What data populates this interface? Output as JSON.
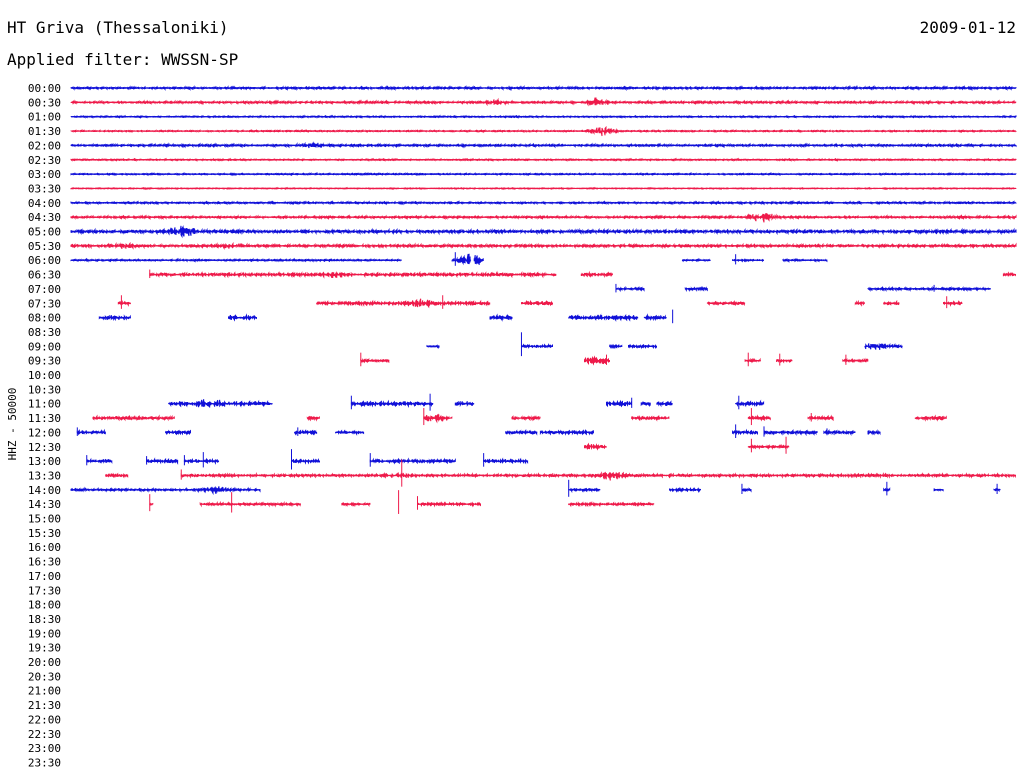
{
  "header": {
    "station": "HT Griva (Thessaloniki)",
    "date": "2009-01-12",
    "filter_prefix": "Applied filter:",
    "filter_name": "WWSSN-SP",
    "channel_label": "HHZ - 50000"
  },
  "colors": {
    "even_row": "#1010d8",
    "odd_row": "#ee1a4a",
    "text": "#000000"
  },
  "chart_data": {
    "type": "line",
    "x_unit": "minutes within 30-minute row",
    "x_range": [
      0,
      30
    ],
    "row_labels": [
      "00:00",
      "00:30",
      "01:00",
      "01:30",
      "02:00",
      "02:30",
      "03:00",
      "03:30",
      "04:00",
      "04:30",
      "05:00",
      "05:30",
      "06:00",
      "06:30",
      "07:00",
      "07:30",
      "08:00",
      "08:30",
      "09:00",
      "09:30",
      "10:00",
      "10:30",
      "11:00",
      "11:30",
      "12:00",
      "12:30",
      "13:00",
      "13:30",
      "14:00",
      "14:30",
      "15:00",
      "15:30",
      "16:00",
      "16:30",
      "17:00",
      "17:30",
      "18:00",
      "18:30",
      "19:00",
      "19:30",
      "20:00",
      "20:30",
      "21:00",
      "21:30",
      "22:00",
      "22:30",
      "23:00",
      "23:30"
    ],
    "rows": [
      {
        "segments": [
          [
            0,
            30
          ]
        ],
        "amp": 1.2,
        "events": []
      },
      {
        "segments": [
          [
            0,
            30
          ]
        ],
        "amp": 1.2,
        "events": [
          [
            16.7,
            4
          ],
          [
            13.5,
            2
          ]
        ]
      },
      {
        "segments": [
          [
            0,
            30
          ]
        ],
        "amp": 0.8,
        "events": []
      },
      {
        "segments": [
          [
            0,
            30
          ]
        ],
        "amp": 0.8,
        "events": [
          [
            16.9,
            5
          ]
        ]
      },
      {
        "segments": [
          [
            0,
            30
          ]
        ],
        "amp": 1.2,
        "events": [
          [
            7.7,
            2
          ]
        ]
      },
      {
        "segments": [
          [
            0,
            30
          ]
        ],
        "amp": 0.8,
        "events": []
      },
      {
        "segments": [
          [
            0,
            30
          ]
        ],
        "amp": 0.8,
        "events": []
      },
      {
        "segments": [
          [
            0,
            30
          ]
        ],
        "amp": 0.6,
        "events": []
      },
      {
        "segments": [
          [
            0,
            30
          ]
        ],
        "amp": 1.0,
        "events": []
      },
      {
        "segments": [
          [
            0,
            30
          ]
        ],
        "amp": 1.2,
        "events": [
          [
            21.9,
            5
          ]
        ]
      },
      {
        "segments": [
          [
            0,
            30
          ]
        ],
        "amp": 2.0,
        "events": [
          [
            3.5,
            5
          ]
        ]
      },
      {
        "segments": [
          [
            0,
            30
          ]
        ],
        "amp": 1.6,
        "events": [
          [
            5.1,
            2
          ],
          [
            1.6,
            2
          ]
        ]
      },
      {
        "segments": [
          [
            0,
            10.5
          ],
          [
            12.1,
            12.7
          ],
          [
            12.8,
            13.1
          ],
          [
            19.4,
            20.3
          ],
          [
            21.0,
            22.0
          ],
          [
            22.6,
            24.0
          ]
        ],
        "amp": 1.0,
        "events": [
          [
            12.8,
            8
          ]
        ],
        "ticks": [
          [
            12.2,
            8
          ],
          [
            21.1,
            6
          ]
        ]
      },
      {
        "segments": [
          [
            2.5,
            15.4
          ],
          [
            16.2,
            17.2
          ],
          [
            29.6,
            30
          ]
        ],
        "amp": 2.0,
        "events": [
          [
            8.4,
            2
          ]
        ],
        "ticks": [
          [
            2.5,
            5
          ]
        ]
      },
      {
        "segments": [
          [
            17.3,
            18.2
          ],
          [
            19.5,
            20.2
          ],
          [
            25.3,
            29.2
          ]
        ],
        "amp": 1.5,
        "events": [],
        "ticks": [
          [
            17.3,
            5
          ],
          [
            27.4,
            4
          ]
        ]
      },
      {
        "segments": [
          [
            1.5,
            1.9
          ],
          [
            7.8,
            13.3
          ],
          [
            14.3,
            15.3
          ],
          [
            20.2,
            21.4
          ],
          [
            24.9,
            25.2
          ],
          [
            25.8,
            26.3
          ],
          [
            27.7,
            28.3
          ]
        ],
        "amp": 2.0,
        "events": [
          [
            11.1,
            3
          ]
        ],
        "ticks": [
          [
            1.6,
            8
          ],
          [
            11.8,
            8
          ],
          [
            27.8,
            7
          ]
        ]
      },
      {
        "segments": [
          [
            0.9,
            1.9
          ],
          [
            5.0,
            5.9
          ],
          [
            13.3,
            14.0
          ],
          [
            15.8,
            18.0
          ],
          [
            18.2,
            18.9
          ]
        ],
        "amp": 2.5,
        "events": [],
        "ticks": [
          [
            19.1,
            8
          ]
        ]
      },
      {
        "segments": [],
        "amp": 1.0,
        "events": []
      },
      {
        "segments": [
          [
            11.3,
            11.7
          ],
          [
            14.3,
            15.3
          ],
          [
            17.1,
            17.5
          ],
          [
            17.7,
            18.6
          ],
          [
            25.2,
            26.4
          ]
        ],
        "amp": 1.5,
        "events": [
          [
            25.6,
            3
          ]
        ],
        "ticks": [
          [
            14.3,
            14
          ]
        ]
      },
      {
        "segments": [
          [
            9.2,
            10.1
          ],
          [
            16.3,
            17.1
          ],
          [
            21.4,
            21.9
          ],
          [
            22.4,
            22.9
          ],
          [
            24.5,
            25.3
          ]
        ],
        "amp": 1.5,
        "events": [
          [
            16.7,
            3
          ]
        ],
        "ticks": [
          [
            9.2,
            8
          ],
          [
            17.0,
            6
          ],
          [
            21.5,
            8
          ],
          [
            22.5,
            7
          ],
          [
            24.6,
            6
          ]
        ]
      },
      {
        "segments": [],
        "amp": 1.0,
        "events": []
      },
      {
        "segments": [],
        "amp": 1.0,
        "events": []
      },
      {
        "segments": [
          [
            3.1,
            6.4
          ],
          [
            8.9,
            11.5
          ],
          [
            12.2,
            12.8
          ],
          [
            17.0,
            17.8
          ],
          [
            18.1,
            18.4
          ],
          [
            18.6,
            19.1
          ],
          [
            21.1,
            22.0
          ]
        ],
        "amp": 2.5,
        "events": [
          [
            4.4,
            3
          ]
        ],
        "ticks": [
          [
            8.9,
            8
          ],
          [
            11.4,
            10
          ],
          [
            17.8,
            6
          ],
          [
            21.2,
            8
          ]
        ]
      },
      {
        "segments": [
          [
            0.7,
            3.3
          ],
          [
            7.5,
            7.9
          ],
          [
            11.2,
            12.1
          ],
          [
            14.0,
            14.9
          ],
          [
            17.8,
            19.0
          ],
          [
            21.5,
            22.2
          ],
          [
            23.4,
            24.2
          ],
          [
            26.8,
            27.8
          ]
        ],
        "amp": 2.0,
        "events": [
          [
            11.6,
            2
          ]
        ],
        "ticks": [
          [
            11.2,
            10
          ],
          [
            21.6,
            10
          ],
          [
            23.5,
            5
          ]
        ]
      },
      {
        "segments": [
          [
            0.2,
            1.1
          ],
          [
            3.0,
            3.8
          ],
          [
            7.1,
            7.8
          ],
          [
            8.4,
            9.3
          ],
          [
            13.8,
            14.8
          ],
          [
            14.9,
            16.6
          ],
          [
            21.0,
            21.8
          ],
          [
            22.0,
            23.7
          ],
          [
            23.9,
            24.9
          ],
          [
            25.3,
            25.7
          ]
        ],
        "amp": 2.0,
        "events": [],
        "ticks": [
          [
            0.2,
            5
          ],
          [
            7.2,
            5
          ],
          [
            21.1,
            8
          ],
          [
            22.0,
            6
          ],
          [
            24.0,
            4
          ]
        ]
      },
      {
        "segments": [
          [
            16.3,
            17.0
          ],
          [
            21.5,
            22.8
          ]
        ],
        "amp": 1.5,
        "events": [
          [
            16.6,
            2
          ]
        ],
        "ticks": [
          [
            21.6,
            8
          ],
          [
            22.7,
            10
          ]
        ]
      },
      {
        "segments": [
          [
            0.5,
            1.3
          ],
          [
            2.4,
            3.4
          ],
          [
            3.6,
            4.7
          ],
          [
            7.0,
            7.9
          ],
          [
            9.5,
            12.2
          ],
          [
            13.1,
            14.5
          ]
        ],
        "amp": 2.0,
        "events": [],
        "ticks": [
          [
            0.5,
            6
          ],
          [
            2.4,
            5
          ],
          [
            3.6,
            6
          ],
          [
            4.2,
            9
          ],
          [
            7.0,
            12
          ],
          [
            9.5,
            8
          ],
          [
            13.1,
            8
          ]
        ]
      },
      {
        "segments": [
          [
            1.1,
            1.8
          ],
          [
            3.5,
            30
          ]
        ],
        "amp": 1.6,
        "events": [
          [
            17.1,
            4
          ],
          [
            10.4,
            2
          ]
        ],
        "ticks": [
          [
            3.5,
            6
          ],
          [
            10.5,
            16
          ]
        ]
      },
      {
        "segments": [
          [
            0,
            6.0
          ],
          [
            15.8,
            16.8
          ],
          [
            19.0,
            20.0
          ],
          [
            21.3,
            21.6
          ],
          [
            25.8,
            26.0
          ],
          [
            27.4,
            27.7
          ],
          [
            29.3,
            29.5
          ]
        ],
        "amp": 1.5,
        "events": [
          [
            4.6,
            3
          ]
        ],
        "ticks": [
          [
            15.8,
            10
          ],
          [
            21.3,
            6
          ],
          [
            25.9,
            8
          ],
          [
            29.4,
            6
          ]
        ]
      },
      {
        "segments": [
          [
            2.5,
            2.6
          ],
          [
            4.1,
            7.3
          ],
          [
            8.6,
            9.5
          ],
          [
            11.0,
            13.0
          ],
          [
            15.8,
            18.5
          ]
        ],
        "amp": 1.5,
        "events": [],
        "ticks": [
          [
            2.5,
            10
          ],
          [
            5.1,
            12
          ],
          [
            10.4,
            14
          ],
          [
            11.0,
            8
          ]
        ]
      },
      {
        "segments": [],
        "amp": 1.0,
        "events": []
      },
      {
        "segments": [],
        "amp": 1.0,
        "events": []
      },
      {
        "segments": [],
        "amp": 1.0,
        "events": []
      },
      {
        "segments": [],
        "amp": 1.0,
        "events": []
      },
      {
        "segments": [],
        "amp": 1.0,
        "events": []
      },
      {
        "segments": [],
        "amp": 1.0,
        "events": []
      },
      {
        "segments": [],
        "amp": 1.0,
        "events": []
      },
      {
        "segments": [],
        "amp": 1.0,
        "events": []
      },
      {
        "segments": [],
        "amp": 1.0,
        "events": []
      },
      {
        "segments": [],
        "amp": 1.0,
        "events": []
      },
      {
        "segments": [],
        "amp": 1.0,
        "events": []
      },
      {
        "segments": [],
        "amp": 1.0,
        "events": []
      },
      {
        "segments": [],
        "amp": 1.0,
        "events": []
      },
      {
        "segments": [],
        "amp": 1.0,
        "events": []
      },
      {
        "segments": [],
        "amp": 1.0,
        "events": []
      },
      {
        "segments": [],
        "amp": 1.0,
        "events": []
      },
      {
        "segments": [],
        "amp": 1.0,
        "events": []
      },
      {
        "segments": [],
        "amp": 1.0,
        "events": []
      }
    ]
  }
}
